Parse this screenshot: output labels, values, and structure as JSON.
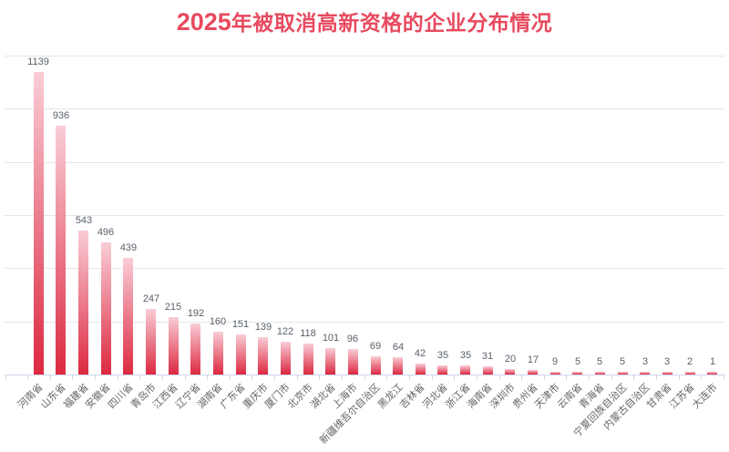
{
  "title": {
    "year": "2025",
    "rest": "年被取消高新资格的企业分布情况"
  },
  "colors": {
    "title": "#e84a5f",
    "bar_gradient_top": "#f9cdd6",
    "bar_gradient_bottom": "#dc2840",
    "gridline": "#e6e6e6",
    "axis": "#ccd6eb",
    "value_label": "#59606a",
    "axis_label": "#666666",
    "background": "#ffffff"
  },
  "chart_data": {
    "type": "bar",
    "title": "2025年被取消高新资格的企业分布情况",
    "xlabel": "",
    "ylabel": "",
    "categories": [
      "河南省",
      "山东省",
      "福建省",
      "安徽省",
      "四川省",
      "青岛市",
      "江西省",
      "辽宁省",
      "湖南省",
      "广东省",
      "重庆市",
      "厦门市",
      "北京市",
      "湖北省",
      "上海市",
      "新疆维吾尔自治区",
      "黑龙江",
      "吉林省",
      "河北省",
      "浙江省",
      "海南省",
      "深圳市",
      "贵州省",
      "天津市",
      "云南省",
      "青海省",
      "宁夏回族自治区",
      "内蒙古自治区",
      "甘肃省",
      "江苏省",
      "大连市"
    ],
    "values": [
      1139,
      936,
      543,
      496,
      439,
      247,
      215,
      192,
      160,
      151,
      139,
      122,
      118,
      101,
      96,
      69,
      64,
      42,
      35,
      35,
      31,
      20,
      17,
      9,
      5,
      5,
      5,
      3,
      3,
      2,
      1
    ],
    "ylim": [
      0,
      1200
    ],
    "grid_interval": 200,
    "grid": true,
    "legend": false,
    "data_labels": true,
    "x_label_rotation": -45
  }
}
